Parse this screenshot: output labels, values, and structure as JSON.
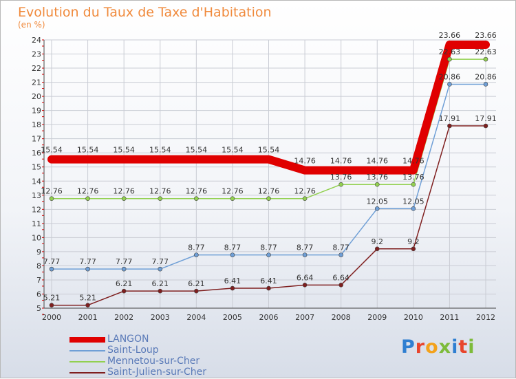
{
  "title": "Evolution du Taux de Taxe d'Habitation",
  "subtitle": "(en %)",
  "logo": "Proxiti",
  "chart_data": {
    "type": "line",
    "title": "Evolution du Taux de Taxe d'Habitation",
    "ylabel": "(en %)",
    "x": [
      "2000",
      "2001",
      "2002",
      "2003",
      "2004",
      "2005",
      "2006",
      "2007",
      "2008",
      "2009",
      "2010",
      "2011",
      "2012"
    ],
    "ylim": [
      5,
      24
    ],
    "yticks": [
      "5",
      "6",
      "7",
      "8",
      "9",
      "10",
      "11",
      "12",
      "13",
      "14",
      "15",
      "16",
      "17",
      "18",
      "19",
      "20",
      "21",
      "22",
      "23",
      "24"
    ],
    "grid": true,
    "legend": "bottom-left",
    "series": [
      {
        "name": "LANGON",
        "color": "#e00000",
        "values": [
          15.54,
          15.54,
          15.54,
          15.54,
          15.54,
          15.54,
          15.54,
          14.76,
          14.76,
          14.76,
          14.76,
          23.66,
          23.66
        ],
        "labels": [
          "15.54",
          "15.54",
          "15.54",
          "15.54",
          "15.54",
          "15.54",
          "15.54",
          "14.76",
          "14.76",
          "14.76",
          "14.76",
          "23.66",
          "23.66"
        ]
      },
      {
        "name": "Saint-Loup",
        "color": "#6f9fd6",
        "values": [
          7.77,
          7.77,
          7.77,
          7.77,
          8.77,
          8.77,
          8.77,
          8.77,
          8.77,
          12.05,
          12.05,
          20.86,
          20.86
        ],
        "labels": [
          "7.77",
          "7.77",
          "7.77",
          "7.77",
          "8.77",
          "8.77",
          "8.77",
          "8.77",
          "8.77",
          "12.05",
          "12.05",
          "20.86",
          "20.86"
        ]
      },
      {
        "name": "Mennetou-sur-Cher",
        "color": "#92d050",
        "values": [
          12.76,
          12.76,
          12.76,
          12.76,
          12.76,
          12.76,
          12.76,
          12.76,
          13.76,
          13.76,
          13.76,
          22.63,
          22.63
        ],
        "labels": [
          "12.76",
          "12.76",
          "12.76",
          "12.76",
          "12.76",
          "12.76",
          "12.76",
          "12.76",
          "13.76",
          "13.76",
          "13.76",
          "22.63",
          "22.63"
        ]
      },
      {
        "name": "Saint-Julien-sur-Cher",
        "color": "#7f1f1f",
        "values": [
          5.21,
          5.21,
          6.21,
          6.21,
          6.21,
          6.41,
          6.41,
          6.64,
          6.64,
          9.2,
          9.2,
          17.91,
          17.91
        ],
        "labels": [
          "5.21",
          "5.21",
          "6.21",
          "6.21",
          "6.21",
          "6.41",
          "6.41",
          "6.64",
          "6.64",
          "9.2",
          "9.2",
          "17.91",
          "17.91"
        ]
      }
    ]
  }
}
